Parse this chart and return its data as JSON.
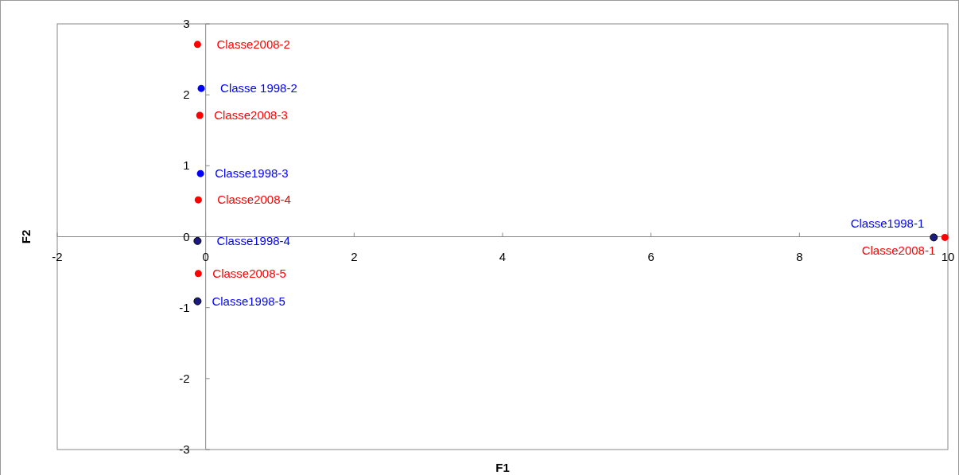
{
  "chart_data": {
    "type": "scatter",
    "xlabel": "F1",
    "ylabel": "F2",
    "xlim": [
      -2,
      10
    ],
    "ylim": [
      -3,
      3
    ],
    "xticks": [
      -2,
      0,
      2,
      4,
      6,
      8,
      10
    ],
    "yticks": [
      -3,
      -2,
      -1,
      0,
      1,
      2,
      3
    ],
    "grid": false,
    "marker": "circle",
    "series": [
      {
        "color": "#0000ff",
        "colors": [
          "#1a1a80",
          "#0000ff",
          "#0000ff",
          "#1a1a80",
          "#1a1a80"
        ],
        "x": [
          9.81,
          -0.06,
          -0.07,
          -0.11,
          -0.11
        ],
        "values": [
          -0.01,
          2.09,
          0.89,
          -0.06,
          -0.91
        ],
        "value_labels": [
          "Classe1998-1",
          "Classe 1998-2",
          "Classe1998-3",
          "Classe1998-4",
          "Classe1998-5"
        ]
      },
      {
        "color": "#ff0000",
        "x": [
          9.96,
          -0.11,
          -0.08,
          -0.1,
          -0.1
        ],
        "values": [
          -0.01,
          2.71,
          1.71,
          0.52,
          -0.52
        ],
        "value_labels": [
          "Classe2008-1",
          "Classe2008-2",
          "Classe2008-3",
          "Classe2008-4",
          "Classe2008-5"
        ]
      }
    ]
  }
}
